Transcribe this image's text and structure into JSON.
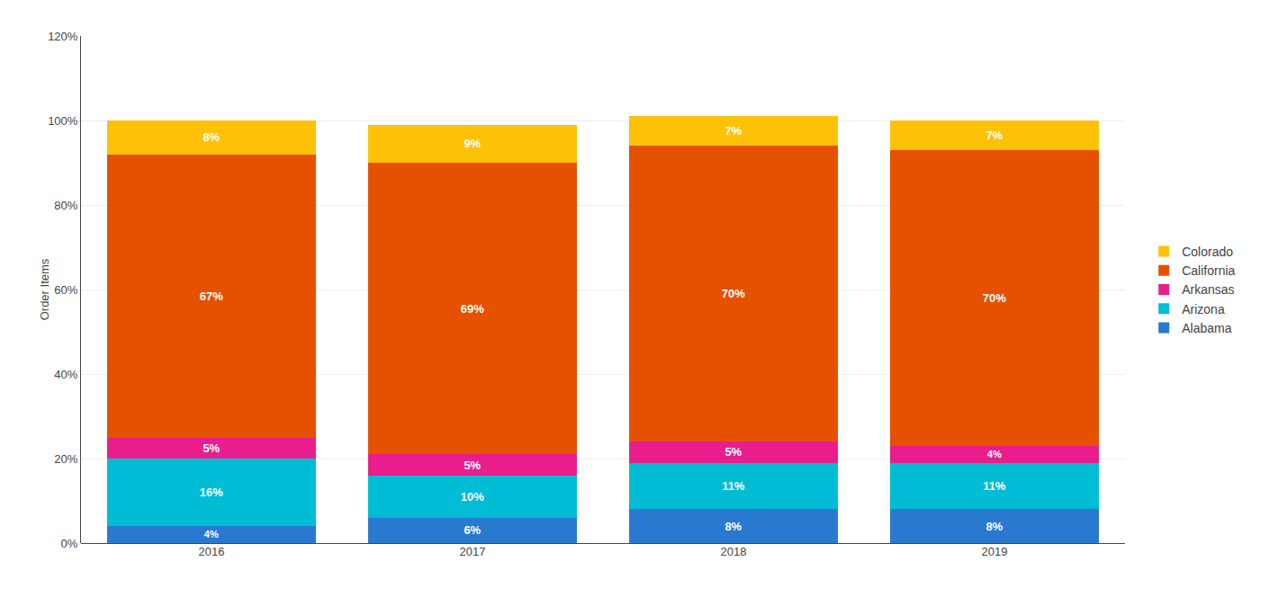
{
  "chart_data": {
    "type": "bar",
    "stacked": true,
    "categories": [
      "2016",
      "2017",
      "2018",
      "2019"
    ],
    "series": [
      {
        "name": "Alabama",
        "color": "#2979d0",
        "values": [
          4,
          6,
          8,
          8
        ],
        "value_labels": [
          "4%",
          "6%",
          "8%",
          "8%"
        ]
      },
      {
        "name": "Arizona",
        "color": "#00bcd4",
        "values": [
          16,
          10,
          11,
          11
        ],
        "value_labels": [
          "16%",
          "10%",
          "11%",
          "11%"
        ]
      },
      {
        "name": "Arkansas",
        "color": "#e91e8c",
        "values": [
          5,
          5,
          5,
          4
        ],
        "value_labels": [
          "5%",
          "5%",
          "5%",
          "4%"
        ]
      },
      {
        "name": "California",
        "color": "#e65100",
        "values": [
          67,
          69,
          70,
          70
        ],
        "value_labels": [
          "67%",
          "69%",
          "70%",
          "70%"
        ]
      },
      {
        "name": "Colorado",
        "color": "#ffc107",
        "values": [
          8,
          9,
          7,
          7
        ],
        "value_labels": [
          "8%",
          "9%",
          "7%",
          "7%"
        ]
      }
    ],
    "ylabel": "Order Items",
    "ylim": [
      0,
      120
    ],
    "yticks": [
      {
        "value": 0,
        "label": "0%"
      },
      {
        "value": 20,
        "label": "20%"
      },
      {
        "value": 40,
        "label": "40%"
      },
      {
        "value": 60,
        "label": "60%"
      },
      {
        "value": 80,
        "label": "80%"
      },
      {
        "value": 100,
        "label": "100%"
      },
      {
        "value": 120,
        "label": "120%"
      }
    ],
    "grid": true,
    "data_labels": true,
    "legend": "right"
  }
}
